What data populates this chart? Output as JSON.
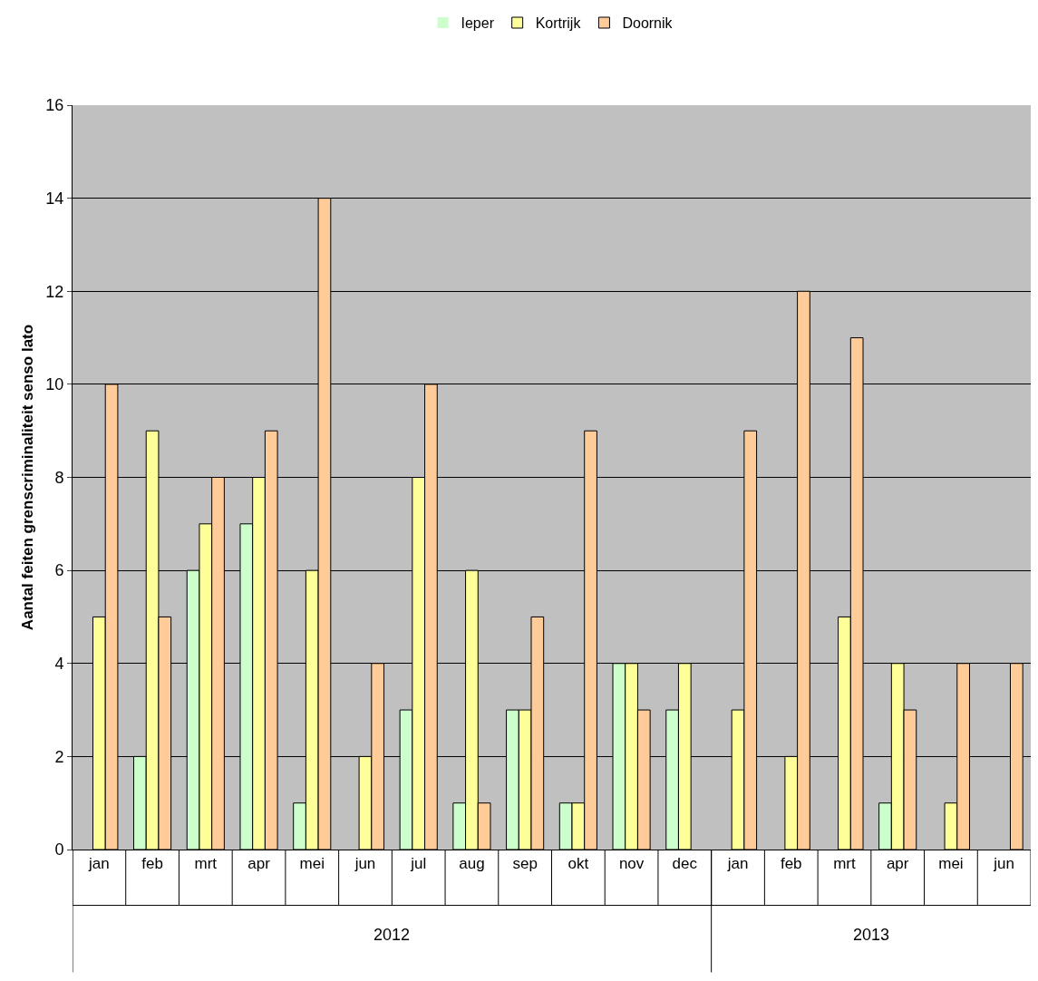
{
  "chart_data": {
    "type": "bar",
    "ylabel": "Aantal feiten grenscriminaliteit senso lato",
    "categories": [
      "jan",
      "feb",
      "mrt",
      "apr",
      "mei",
      "jun",
      "jul",
      "aug",
      "sep",
      "okt",
      "nov",
      "dec",
      "jan",
      "feb",
      "mrt",
      "apr",
      "mei",
      "jun"
    ],
    "series": [
      {
        "name": "Ieper",
        "color": "#ccffcc",
        "values": [
          0,
          2,
          6,
          7,
          1,
          0,
          3,
          1,
          3,
          1,
          4,
          3,
          0,
          0,
          0,
          1,
          0,
          0
        ]
      },
      {
        "name": "Kortrijk",
        "color": "#ffff99",
        "values": [
          5,
          9,
          7,
          8,
          6,
          2,
          8,
          6,
          3,
          1,
          4,
          4,
          3,
          2,
          5,
          4,
          1,
          0
        ]
      },
      {
        "name": "Doornik",
        "color": "#ffcc99",
        "values": [
          10,
          5,
          8,
          9,
          14,
          4,
          10,
          1,
          5,
          9,
          3,
          0,
          9,
          12,
          11,
          3,
          4,
          4
        ]
      }
    ],
    "annotations": [
      "2012",
      "2013"
    ],
    "ylim": [
      0,
      16
    ],
    "yticks": [
      0,
      2,
      4,
      6,
      8,
      10,
      12,
      14,
      16
    ],
    "grid": "y",
    "legend": "top"
  }
}
